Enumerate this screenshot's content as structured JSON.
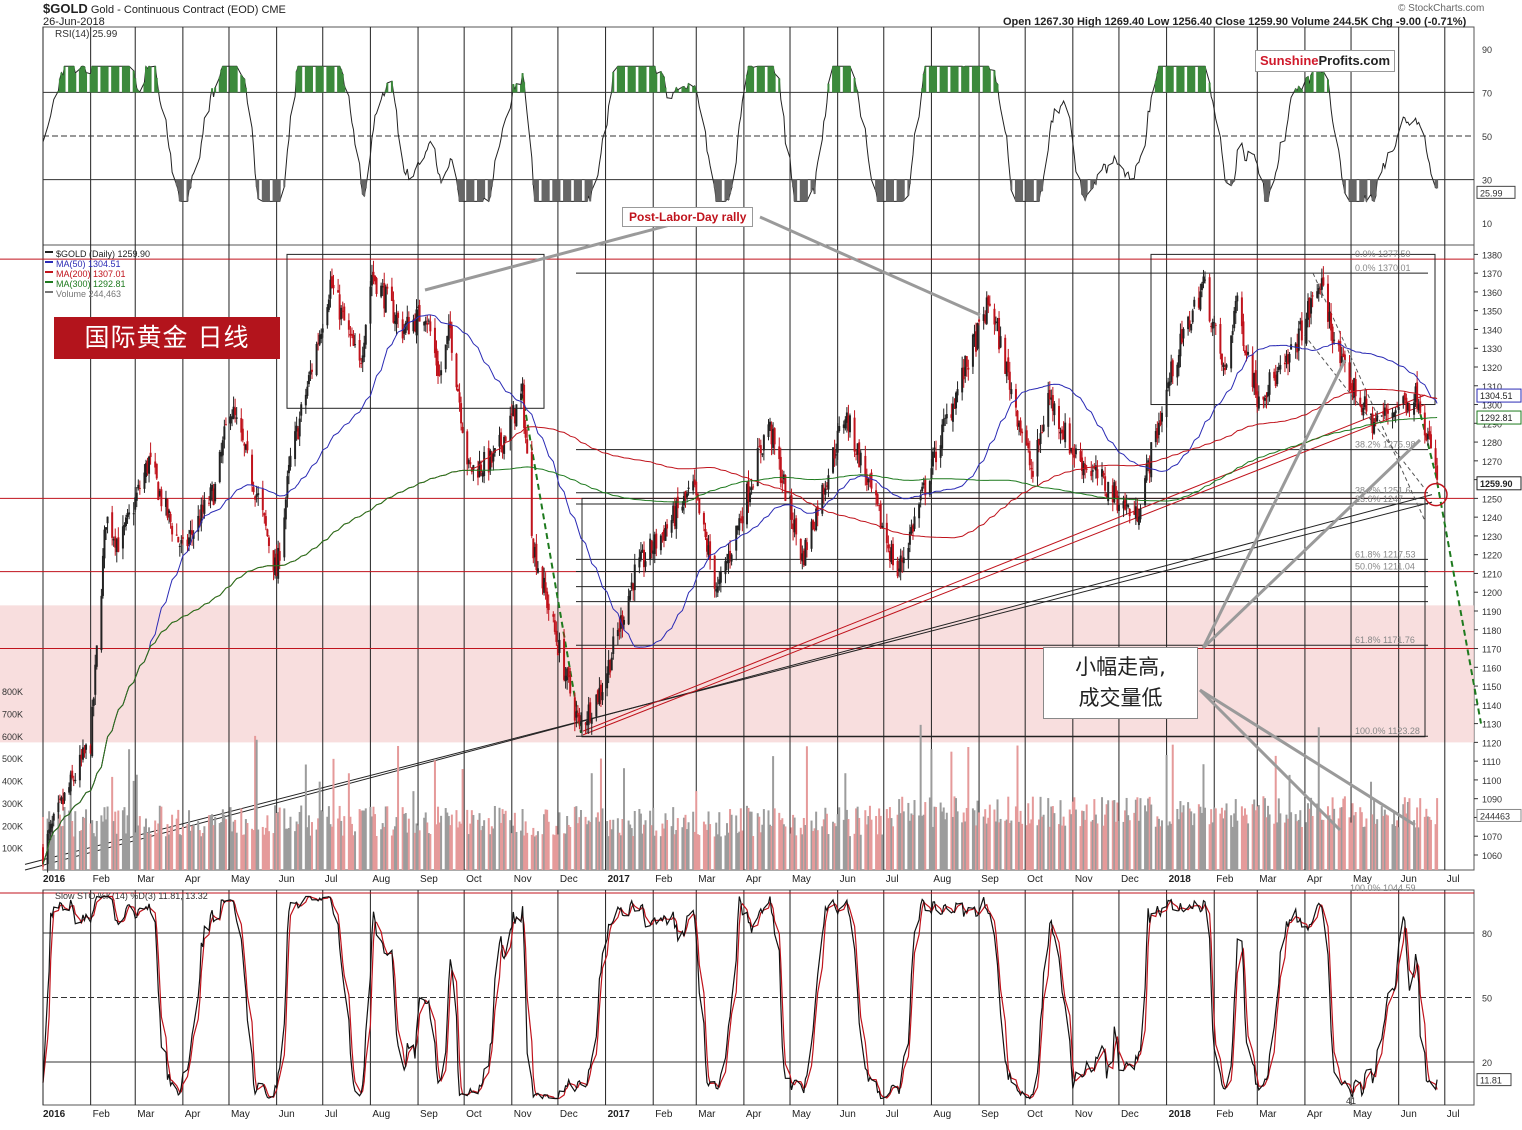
{
  "header": {
    "symbol": "$GOLD",
    "description": "Gold - Continuous Contract (EOD)",
    "exchange": "CME",
    "date": "26-Jun-2018",
    "source": "© StockCharts.com",
    "ohlc": "Open 1267.30  High 1269.40  Low 1256.40  Close 1259.90  Volume 244.5K  Chg -9.00 (-0.71%)"
  },
  "logo": {
    "part1": "Sunshine",
    "part2": "Profits.com"
  },
  "annotations": {
    "cn_title": "国际黄金  日线",
    "cn_note_line1": "小幅走高,",
    "cn_note_line2": "成交量低",
    "rally_label": "Post-Labor-Day rally"
  },
  "colors": {
    "price_up": "#222222",
    "price_down": "#c0131c",
    "ma50": "#2b2bb5",
    "ma200": "#c0131c",
    "ma300": "#1e7a1e",
    "volume_up": "#9c9c9c",
    "volume_down": "#e59a9a",
    "rsi": "#222222",
    "rsi_fill": "#3c8a3c",
    "band": "#f6d3d3",
    "stoch_k": "#111111",
    "stoch_d": "#c0131c"
  },
  "chart_data": [
    {
      "type": "line",
      "title": "RSI(14) 25.99",
      "yticks": [
        10,
        30,
        50,
        70,
        90
      ],
      "reference_lines": [
        30,
        50,
        70
      ],
      "last_value_label": "25.99",
      "ylim": [
        0,
        100
      ]
    },
    {
      "type": "candlestick",
      "legend": [
        {
          "label": "$GOLD (Daily) 1259.90",
          "color": "#222222"
        },
        {
          "label": "MA(50) 1304.51",
          "color": "#2b2bb5"
        },
        {
          "label": "MA(200) 1307.01",
          "color": "#c0131c"
        },
        {
          "label": "MA(300) 1292.81",
          "color": "#1e7a1e"
        },
        {
          "label": "Volume 244,463",
          "color": "#777777"
        }
      ],
      "yticks": [
        1060,
        1070,
        1080,
        1090,
        1100,
        1110,
        1120,
        1130,
        1140,
        1150,
        1160,
        1170,
        1180,
        1190,
        1200,
        1210,
        1220,
        1230,
        1240,
        1250,
        1260,
        1270,
        1280,
        1290,
        1300,
        1310,
        1320,
        1330,
        1340,
        1350,
        1360,
        1370,
        1380
      ],
      "ylim": [
        1052,
        1385
      ],
      "price_keypoints": [
        [
          "2016-01-01",
          1062
        ],
        [
          "2016-01-15",
          1090
        ],
        [
          "2016-02-01",
          1120
        ],
        [
          "2016-02-11",
          1240
        ],
        [
          "2016-02-20",
          1225
        ],
        [
          "2016-03-10",
          1270
        ],
        [
          "2016-03-20",
          1245
        ],
        [
          "2016-04-01",
          1222
        ],
        [
          "2016-04-22",
          1255
        ],
        [
          "2016-05-02",
          1300
        ],
        [
          "2016-05-20",
          1250
        ],
        [
          "2016-06-01",
          1210
        ],
        [
          "2016-06-10",
          1270
        ],
        [
          "2016-06-24",
          1320
        ],
        [
          "2016-07-06",
          1365
        ],
        [
          "2016-07-25",
          1320
        ],
        [
          "2016-08-02",
          1370
        ],
        [
          "2016-08-22",
          1340
        ],
        [
          "2016-09-06",
          1350
        ],
        [
          "2016-09-15",
          1315
        ],
        [
          "2016-09-22",
          1340
        ],
        [
          "2016-10-04",
          1265
        ],
        [
          "2016-10-20",
          1270
        ],
        [
          "2016-11-08",
          1305
        ],
        [
          "2016-11-15",
          1225
        ],
        [
          "2016-11-30",
          1175
        ],
        [
          "2016-12-15",
          1128
        ],
        [
          "2016-12-30",
          1150
        ],
        [
          "2017-01-20",
          1210
        ],
        [
          "2017-02-27",
          1255
        ],
        [
          "2017-03-15",
          1200
        ],
        [
          "2017-04-17",
          1290
        ],
        [
          "2017-05-09",
          1218
        ],
        [
          "2017-06-06",
          1295
        ],
        [
          "2017-07-10",
          1210
        ],
        [
          "2017-08-10",
          1290
        ],
        [
          "2017-09-08",
          1355
        ],
        [
          "2017-10-06",
          1262
        ],
        [
          "2017-10-16",
          1305
        ],
        [
          "2017-11-01",
          1275
        ],
        [
          "2017-12-12",
          1240
        ],
        [
          "2018-01-05",
          1320
        ],
        [
          "2018-01-25",
          1365
        ],
        [
          "2018-02-08",
          1315
        ],
        [
          "2018-02-15",
          1355
        ],
        [
          "2018-03-01",
          1305
        ],
        [
          "2018-03-20",
          1320
        ],
        [
          "2018-04-11",
          1365
        ],
        [
          "2018-04-25",
          1320
        ],
        [
          "2018-05-15",
          1290
        ],
        [
          "2018-06-01",
          1300
        ],
        [
          "2018-06-14",
          1305
        ],
        [
          "2018-06-26",
          1260
        ]
      ],
      "horizontal_levels": [
        1370.01,
        1276,
        1253,
        1247,
        1217.53,
        1211.04,
        1203,
        1195,
        1171.76,
        1123.28
      ],
      "fibonacci_labels": [
        "0.0% 1377.50",
        "0.0% 1370.01",
        "38.2% 1275.98",
        "38.2% 1251.6",
        "23.6% 1247",
        "61.8% 1217.53",
        "50.0% 1211.04",
        "61.8% 1171.76",
        "100.0% 1123.28",
        "100.0% 1044.59"
      ],
      "right_axis_labels": [
        "1304.51",
        "1292.81",
        "1259.90"
      ],
      "ma50_end": 1304.51,
      "ma200_end": 1307.01,
      "ma300_end": 1292.81,
      "close": 1259.9
    },
    {
      "type": "bar",
      "title": "Volume",
      "yticks_labels": [
        "100K",
        "200K",
        "300K",
        "400K",
        "500K",
        "600K",
        "700K",
        "800K"
      ],
      "yticks_values": [
        100,
        200,
        300,
        400,
        500,
        600,
        700,
        800
      ],
      "last_value_label": "244463",
      "unit": "K"
    },
    {
      "type": "line",
      "title": "Slow STO %K(14) %D(3) 11.81, 13.32",
      "yticks": [
        20,
        50,
        80
      ],
      "reference_lines": [
        20,
        50,
        80
      ],
      "last_value_label": "11.81",
      "ylim": [
        0,
        100
      ]
    }
  ],
  "x_axis": {
    "labels": [
      "2016",
      "Feb",
      "Mar",
      "Apr",
      "May",
      "Jun",
      "Jul",
      "Aug",
      "Sep",
      "Oct",
      "Nov",
      "Dec",
      "2017",
      "Feb",
      "Mar",
      "Apr",
      "May",
      "Jun",
      "Jul",
      "Aug",
      "Sep",
      "Oct",
      "Nov",
      "Dec",
      "2018",
      "Feb",
      "Mar",
      "Apr",
      "May",
      "Jun",
      "Jul"
    ],
    "extra_label": "41"
  }
}
